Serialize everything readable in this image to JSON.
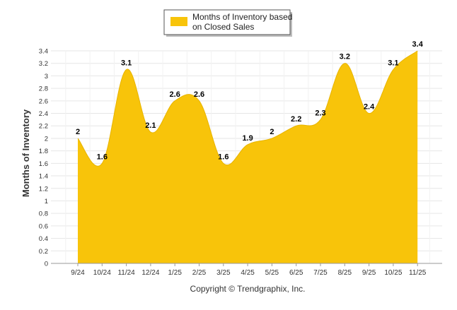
{
  "chart_data": {
    "type": "area",
    "legend": {
      "label_line1": "Months of Inventory based",
      "label_line2": "on Closed Sales",
      "placement": "top-center"
    },
    "ylabel": "Months of Inventory",
    "ylim": [
      0,
      3.4
    ],
    "y_ticks": [
      "0",
      "0.2",
      "0.4",
      "0.6",
      "0.8",
      "1",
      "1.2",
      "1.4",
      "1.6",
      "1.8",
      "2",
      "2.2",
      "2.4",
      "2.6",
      "2.8",
      "3",
      "3.2",
      "3.4"
    ],
    "categories": [
      "9/24",
      "10/24",
      "11/24",
      "12/24",
      "1/25",
      "2/25",
      "3/25",
      "4/25",
      "5/25",
      "6/25",
      "7/25",
      "8/25",
      "9/25",
      "10/25",
      "11/25"
    ],
    "series": [
      {
        "name": "Months of Inventory based on Closed Sales",
        "values": [
          2,
          1.6,
          3.1,
          2.1,
          2.6,
          2.6,
          1.6,
          1.9,
          2,
          2.2,
          2.3,
          3.2,
          2.4,
          3.1,
          3.4
        ],
        "labels": [
          "2",
          "1.6",
          "3.1",
          "2.1",
          "2.6",
          "2.6",
          "1.6",
          "1.9",
          "2",
          "2.2",
          "2.3",
          "3.2",
          "2.4",
          "3.1",
          "3.4"
        ],
        "color": "#F8C40A"
      }
    ],
    "grid": true
  },
  "footer": {
    "copyright": "Copyright © Trendgraphix, Inc."
  },
  "colors": {
    "fill": "#F8C40A",
    "grid": "#E6E6E6",
    "axis": "#999999",
    "text": "#333333",
    "legend_border": "#555555"
  }
}
